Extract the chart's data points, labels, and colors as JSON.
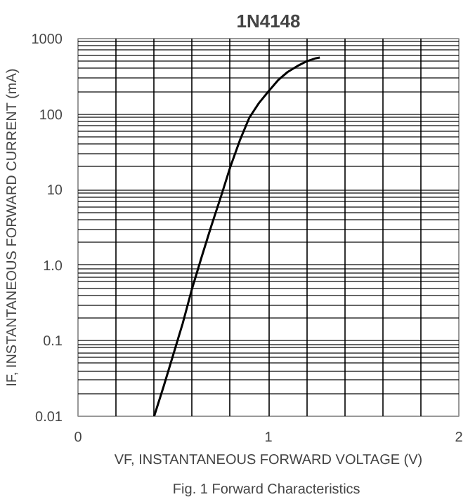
{
  "chart_data": {
    "type": "line",
    "title": "1N4148",
    "xlabel": "VF, INSTANTANEOUS FORWARD VOLTAGE (V)",
    "ylabel": "IF, INSTANTANEOUS FORWARD CURRENT (mA)",
    "annotations": [
      "Fig. 1  Forward Characteristics"
    ],
    "log": "y",
    "grid": true,
    "xlim": [
      0,
      2
    ],
    "xticks": [
      0,
      1,
      2
    ],
    "ylim": [
      0.01,
      1000
    ],
    "yticks": [
      0.01,
      0.1,
      {
        "value": 1,
        "label": "1.0"
      },
      10,
      100,
      1000
    ],
    "x": [
      0.4,
      0.45,
      0.5,
      0.55,
      0.6,
      0.65,
      0.7,
      0.75,
      0.8,
      0.85,
      0.9,
      0.95,
      1.0,
      1.05,
      1.1,
      1.15,
      1.2,
      1.25,
      1.27
    ],
    "series": [
      {
        "color": "#000000",
        "values": [
          0.01,
          0.025,
          0.065,
          0.17,
          0.5,
          1.3,
          3.3,
          8,
          20,
          45,
          90,
          140,
          200,
          280,
          360,
          430,
          500,
          550,
          560
        ]
      }
    ]
  }
}
